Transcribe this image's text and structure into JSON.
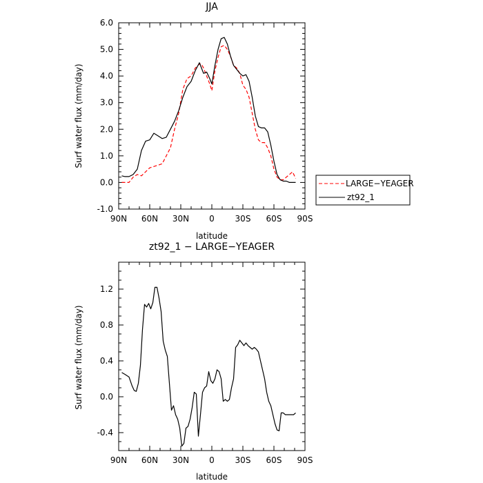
{
  "chart_data": [
    {
      "type": "line",
      "title": "JJA",
      "xlabel": "latitude",
      "ylabel": "Surf water flux (mm/day)",
      "x_tick_labels": [
        "90N",
        "60N",
        "30N",
        "0",
        "30S",
        "60S",
        "90S"
      ],
      "y_tick_labels": [
        "-1.0",
        "0.0",
        "1.0",
        "2.0",
        "3.0",
        "4.0",
        "5.0",
        "6.0"
      ],
      "xlim": [
        -90,
        90
      ],
      "ylim": [
        -1.0,
        6.0
      ],
      "grid": false,
      "legend_position": "right",
      "series": [
        {
          "name": "LARGE−YEAGER",
          "color": "#ff0000",
          "dash": "dashed",
          "x": [
            -87,
            -84,
            -80,
            -76,
            -72,
            -68,
            -64,
            -60,
            -56,
            -52,
            -48,
            -44,
            -40,
            -36,
            -32,
            -28,
            -24,
            -20,
            -16,
            -12,
            -10,
            -8,
            -5,
            -2,
            0,
            3,
            6,
            9,
            12,
            15,
            18,
            21,
            24,
            27,
            30,
            33,
            36,
            39,
            42,
            45,
            48,
            51,
            54,
            57,
            60,
            63,
            66,
            69,
            72,
            75,
            78,
            81
          ],
          "y": [
            0.0,
            0.0,
            0.0,
            0.2,
            0.3,
            0.25,
            0.4,
            0.55,
            0.6,
            0.65,
            0.7,
            1.0,
            1.3,
            2.0,
            2.6,
            3.5,
            3.9,
            4.0,
            4.3,
            4.45,
            4.45,
            4.3,
            4.0,
            3.7,
            3.45,
            4.2,
            4.7,
            5.1,
            5.15,
            5.0,
            4.75,
            4.4,
            4.3,
            4.1,
            3.65,
            3.5,
            3.2,
            2.6,
            2.0,
            1.6,
            1.5,
            1.5,
            1.3,
            1.0,
            0.5,
            0.2,
            0.1,
            0.1,
            0.2,
            0.3,
            0.4,
            0.15
          ]
        },
        {
          "name": "zt92_1",
          "color": "#000000",
          "dash": "solid",
          "x": [
            -87,
            -84,
            -80,
            -76,
            -72,
            -68,
            -64,
            -60,
            -56,
            -52,
            -48,
            -44,
            -40,
            -36,
            -32,
            -28,
            -24,
            -20,
            -16,
            -12,
            -10,
            -8,
            -5,
            -2,
            0,
            3,
            6,
            9,
            12,
            15,
            18,
            21,
            24,
            27,
            30,
            33,
            36,
            39,
            42,
            45,
            48,
            51,
            54,
            57,
            60,
            63,
            66,
            69,
            72,
            75,
            78,
            81
          ],
          "y": [
            0.25,
            0.22,
            0.22,
            0.3,
            0.5,
            1.2,
            1.55,
            1.6,
            1.85,
            1.75,
            1.65,
            1.7,
            2.0,
            2.3,
            2.7,
            3.2,
            3.6,
            3.8,
            4.2,
            4.5,
            4.3,
            4.1,
            4.15,
            3.9,
            3.7,
            4.4,
            5.0,
            5.4,
            5.45,
            5.2,
            4.75,
            4.4,
            4.25,
            4.1,
            4.0,
            4.05,
            3.8,
            3.2,
            2.5,
            2.1,
            2.05,
            2.05,
            1.9,
            1.4,
            0.8,
            0.3,
            0.1,
            0.05,
            0.05,
            0.0,
            0.0,
            0.0
          ]
        }
      ]
    },
    {
      "type": "line",
      "title": "zt92_1 − LARGE−YEAGER",
      "xlabel": "latitude",
      "ylabel": "Surf water flux (mm/day)",
      "x_tick_labels": [
        "90N",
        "60N",
        "30N",
        "0",
        "30S",
        "60S",
        "90S"
      ],
      "y_tick_labels": [
        "-0.4",
        "0.0",
        "0.4",
        "0.8",
        "1.2"
      ],
      "xlim": [
        -90,
        90
      ],
      "ylim": [
        -0.6,
        1.5
      ],
      "grid": false,
      "series": [
        {
          "color": "#000000",
          "dash": "solid",
          "x": [
            -87,
            -84,
            -80,
            -77,
            -75,
            -73,
            -71,
            -69,
            -67,
            -65,
            -63,
            -61,
            -59,
            -57,
            -55,
            -53,
            -51,
            -49,
            -47,
            -45,
            -43,
            -41,
            -39,
            -37,
            -35,
            -33,
            -31,
            -29,
            -27,
            -25,
            -23,
            -21,
            -19,
            -17,
            -15,
            -13,
            -11,
            -9,
            -7,
            -5,
            -3,
            -1,
            1,
            3,
            5,
            7,
            9,
            11,
            13,
            15,
            17,
            19,
            21,
            23,
            25,
            27,
            29,
            31,
            33,
            35,
            37,
            39,
            41,
            43,
            45,
            47,
            49,
            51,
            53,
            55,
            57,
            59,
            61,
            63,
            65,
            67,
            69,
            71,
            73,
            75,
            77,
            79,
            81
          ],
          "y": [
            0.27,
            0.25,
            0.22,
            0.12,
            0.07,
            0.06,
            0.15,
            0.35,
            0.75,
            1.03,
            1.0,
            1.04,
            0.98,
            1.05,
            1.22,
            1.22,
            1.1,
            0.95,
            0.62,
            0.52,
            0.45,
            0.15,
            -0.15,
            -0.1,
            -0.2,
            -0.25,
            -0.35,
            -0.55,
            -0.52,
            -0.35,
            -0.33,
            -0.25,
            -0.12,
            0.05,
            0.03,
            -0.44,
            -0.2,
            0.05,
            0.1,
            0.12,
            0.28,
            0.18,
            0.15,
            0.2,
            0.3,
            0.28,
            0.2,
            -0.05,
            -0.03,
            -0.05,
            -0.03,
            0.1,
            0.2,
            0.55,
            0.58,
            0.63,
            0.6,
            0.57,
            0.6,
            0.57,
            0.55,
            0.53,
            0.55,
            0.53,
            0.5,
            0.4,
            0.3,
            0.2,
            0.05,
            -0.05,
            -0.1,
            -0.2,
            -0.3,
            -0.37,
            -0.38,
            -0.18,
            -0.18,
            -0.2,
            -0.2,
            -0.2,
            -0.2,
            -0.2,
            -0.18
          ]
        }
      ]
    }
  ]
}
